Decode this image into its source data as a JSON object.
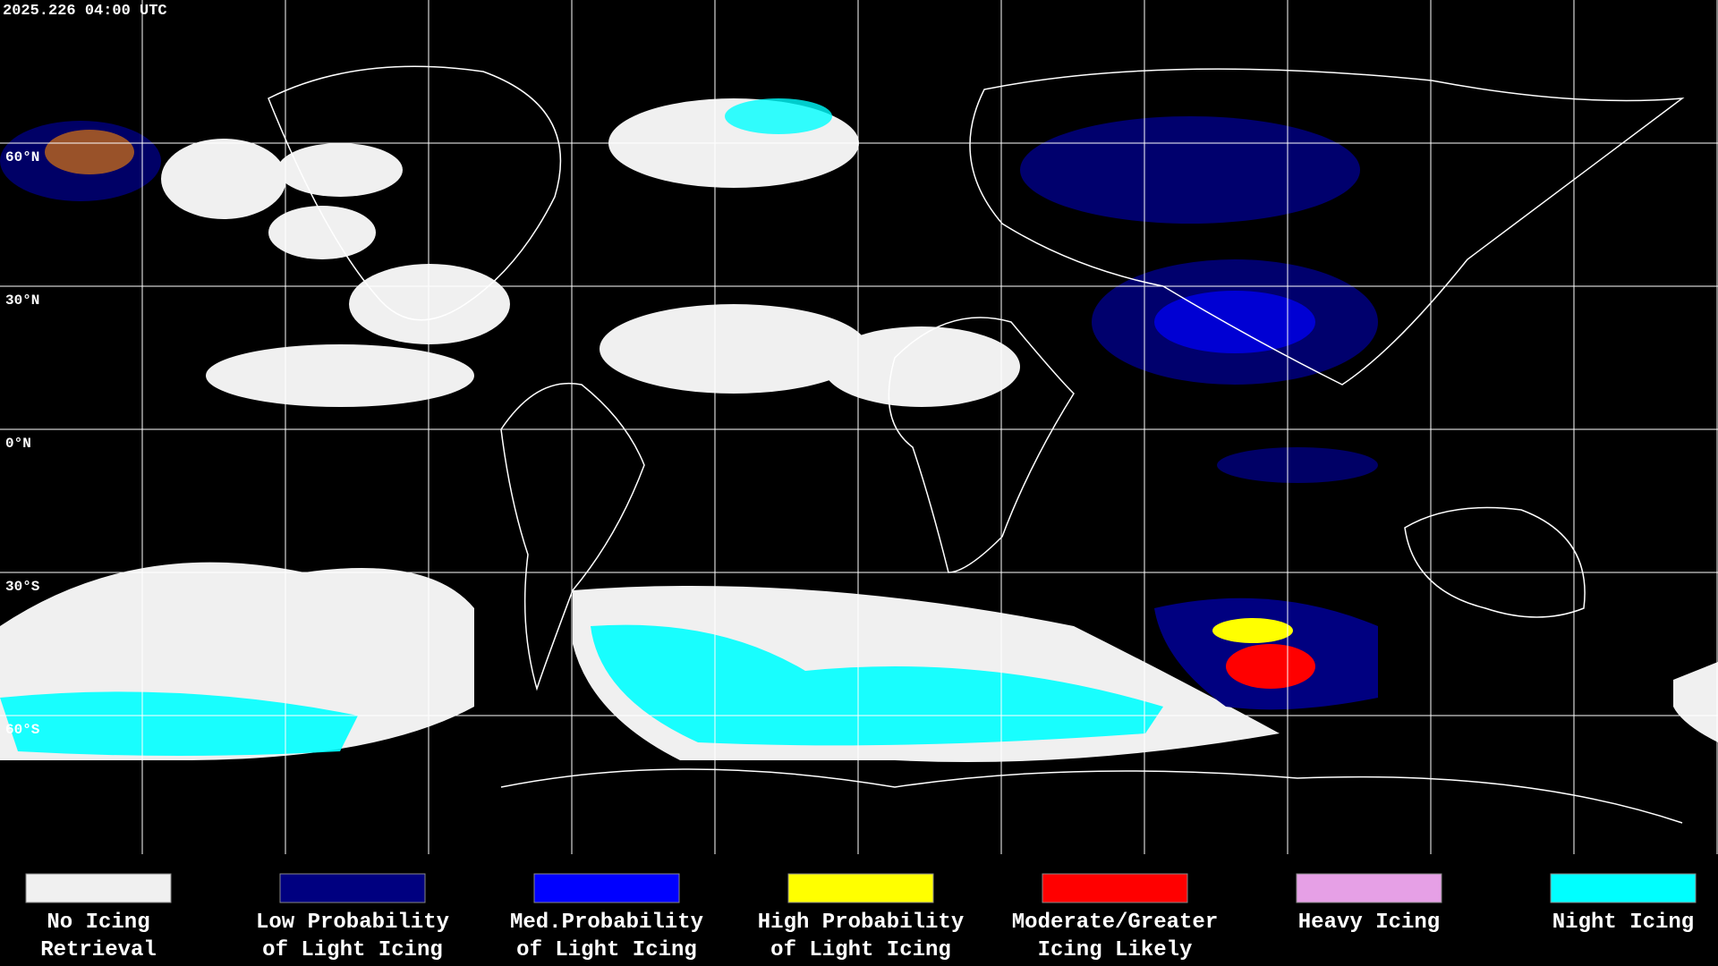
{
  "timestamp": "2025.226 04:00 UTC",
  "latitude_labels": [
    "60°N",
    "30°N",
    "0°N",
    "30°S",
    "60°S"
  ],
  "legend": [
    {
      "label": [
        "No Icing",
        "Retrieval"
      ],
      "color": "#f0f0f0"
    },
    {
      "label": [
        "Low Probability",
        "of Light Icing"
      ],
      "color": "#000080"
    },
    {
      "label": [
        "Med.Probability",
        "of Light Icing"
      ],
      "color": "#0000ff"
    },
    {
      "label": [
        "High Probability",
        "of Light Icing"
      ],
      "color": "#ffff00"
    },
    {
      "label": [
        "Moderate/Greater",
        "Icing Likely"
      ],
      "color": "#ff0000"
    },
    {
      "label": [
        "Heavy Icing"
      ],
      "color": "#e6a0e6"
    },
    {
      "label": [
        "Night Icing"
      ],
      "color": "#00ffff"
    }
  ]
}
